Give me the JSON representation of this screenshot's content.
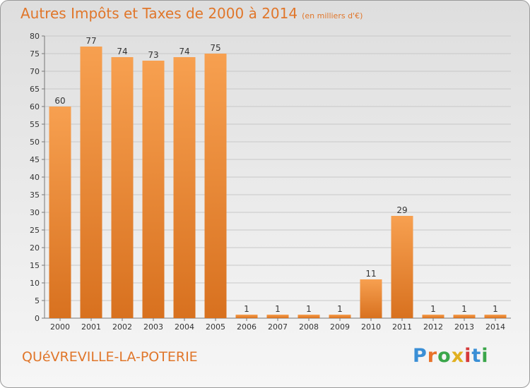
{
  "title": "Autres Impôts et Taxes de 2000 à 2014",
  "title_unit": "(en milliers d'€)",
  "commune": "QUéVREVILLE-LA-POTERIE",
  "logo": {
    "letters": [
      "P",
      "r",
      "o",
      "x",
      "i",
      "t",
      "i"
    ],
    "colors": [
      "#3a8fd6",
      "#e8722a",
      "#3aa64a",
      "#e0b020",
      "#d63a3a",
      "#3a8fd6",
      "#3aa64a"
    ]
  },
  "colors": {
    "accent": "#e0762a",
    "bar_top": "#f7a050",
    "bar_bottom": "#d8711f",
    "grid": "#c8c8c8"
  },
  "chart_data": {
    "type": "bar",
    "categories": [
      "2000",
      "2001",
      "2002",
      "2003",
      "2004",
      "2005",
      "2006",
      "2007",
      "2008",
      "2009",
      "2010",
      "2011",
      "2012",
      "2013",
      "2014"
    ],
    "values": [
      60,
      77,
      74,
      73,
      74,
      75,
      1,
      1,
      1,
      1,
      11,
      29,
      1,
      1,
      1
    ],
    "ylim": [
      0,
      80
    ],
    "yticks": [
      0,
      5,
      10,
      15,
      20,
      25,
      30,
      35,
      40,
      45,
      50,
      55,
      60,
      65,
      70,
      75,
      80
    ],
    "grid": true
  }
}
